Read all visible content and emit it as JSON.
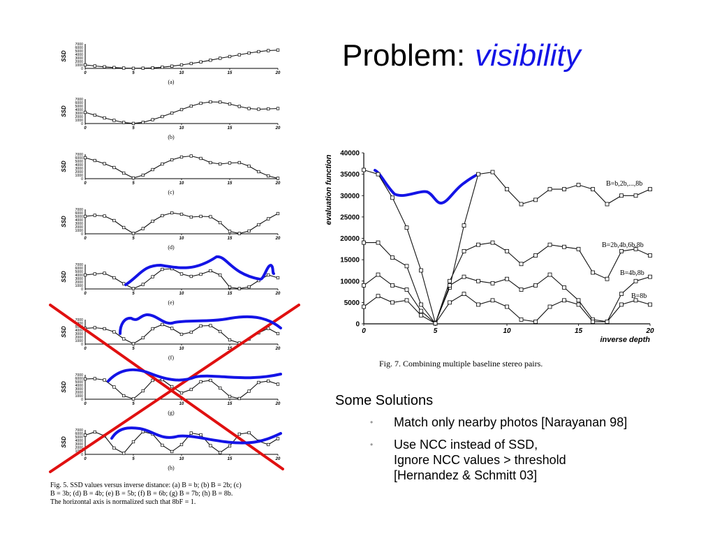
{
  "slide": {
    "title": "Problem:",
    "title_accent": "visibility",
    "solutions_heading": "Some Solutions",
    "solutions": [
      {
        "lines": [
          "Match only nearby photos [Narayanan 98]"
        ]
      },
      {
        "lines": [
          "Use NCC instead of SSD,",
          "Ignore NCC values > threshold",
          "[Hernandez & Schmitt 03]"
        ]
      }
    ],
    "bullet_glyph": "•",
    "colors": {
      "accent_blue": "#1414e6",
      "cross_red": "#e01010",
      "curve": "#111111",
      "bullet_gray": "#999999"
    }
  },
  "chart_data": [
    {
      "id": "fig5",
      "type": "line",
      "caption": "Fig. 5. SSD values versus inverse distance: (a) B = b; (b) B = 2b; (c) B = 3b; (d) B = 4b; (e) B = 5b; (f) B = 6b; (g) B = 7b; (h) B = 8b. The horizontal axis is normalized such that 8bF = 1.",
      "ylabel": "SSD",
      "yticks": [
        "7000",
        "6000",
        "5000",
        "4000",
        "3000",
        "2000",
        "1000",
        "0"
      ],
      "xticks": [
        "0",
        "5",
        "10",
        "15",
        "20"
      ],
      "xlim": [
        0,
        20
      ],
      "ylim": [
        0,
        7000
      ],
      "x": [
        0,
        1,
        2,
        3,
        4,
        5,
        6,
        7,
        8,
        9,
        10,
        11,
        12,
        13,
        14,
        15,
        16,
        17,
        18,
        19,
        20
      ],
      "panels": [
        {
          "label": "(a)",
          "values": [
            1000,
            700,
            450,
            250,
            100,
            30,
            60,
            150,
            350,
            650,
            1000,
            1400,
            1850,
            2350,
            2900,
            3400,
            3900,
            4400,
            4800,
            5100,
            5250
          ]
        },
        {
          "label": "(b)",
          "values": [
            3200,
            2400,
            1600,
            900,
            300,
            30,
            350,
            1100,
            2000,
            3000,
            4000,
            5000,
            5800,
            6200,
            6150,
            5600,
            4900,
            4300,
            4100,
            4200,
            4300
          ]
        },
        {
          "label": "(c)",
          "values": [
            6000,
            5200,
            4300,
            3200,
            1600,
            200,
            1000,
            2600,
            4200,
            5400,
            6200,
            6500,
            5800,
            4600,
            4200,
            4500,
            4600,
            3600,
            2000,
            800,
            100
          ]
        },
        {
          "label": "(d)",
          "values": [
            5000,
            5300,
            5100,
            3800,
            1800,
            100,
            1500,
            3600,
            5200,
            6000,
            5600,
            4800,
            5000,
            4900,
            3200,
            700,
            100,
            800,
            2600,
            4300,
            5800
          ]
        },
        {
          "label": "(e)",
          "values": [
            4000,
            4300,
            4500,
            3200,
            1500,
            100,
            1300,
            3500,
            5600,
            5800,
            4300,
            3600,
            4200,
            5200,
            4000,
            500,
            100,
            600,
            2400,
            4000,
            3200
          ]
        },
        {
          "label": "(f)",
          "values": [
            4500,
            4700,
            4400,
            3500,
            1500,
            100,
            1800,
            4400,
            5600,
            4500,
            2800,
            3400,
            5200,
            5300,
            3600,
            1200,
            300,
            1400,
            3200,
            4500,
            3000
          ]
        },
        {
          "label": "(g)",
          "values": [
            5800,
            5900,
            5500,
            3500,
            1000,
            100,
            2400,
            5400,
            5600,
            3600,
            1800,
            2800,
            5000,
            5400,
            3200,
            800,
            200,
            2300,
            4800,
            5200,
            4300
          ]
        },
        {
          "label": "(h)",
          "values": [
            5500,
            6400,
            5300,
            1800,
            300,
            3600,
            6500,
            5800,
            2600,
            800,
            2800,
            6100,
            5600,
            2500,
            500,
            2400,
            5800,
            6200,
            3800,
            2800,
            4500
          ]
        }
      ]
    },
    {
      "id": "fig7",
      "type": "line",
      "caption": "Fig. 7. Combining multiple baseline stereo pairs.",
      "xlabel": "inverse depth",
      "ylabel": "evaluation function",
      "xlim": [
        0,
        20
      ],
      "ylim": [
        0,
        40000
      ],
      "xticks": [
        "0",
        "5",
        "10",
        "15",
        "20"
      ],
      "yticks": [
        "40000",
        "35000",
        "30000",
        "25000",
        "20000",
        "15000",
        "10000",
        "5000",
        "0"
      ],
      "x": [
        0,
        1,
        2,
        3,
        4,
        5,
        6,
        7,
        8,
        9,
        10,
        11,
        12,
        13,
        14,
        15,
        16,
        17,
        18,
        19,
        20
      ],
      "series": [
        {
          "name": "B=b,2b,...,8b",
          "values": [
            36000,
            35000,
            29500,
            22500,
            12500,
            200,
            8500,
            23000,
            35000,
            35500,
            31500,
            28000,
            29000,
            31500,
            31500,
            32500,
            31500,
            28000,
            30000,
            30000,
            31500
          ]
        },
        {
          "name": "B=2b,4b,6b,8b",
          "values": [
            19000,
            19000,
            15500,
            13500,
            4500,
            100,
            10000,
            17000,
            18500,
            19000,
            17000,
            14000,
            16000,
            18500,
            18000,
            17500,
            12000,
            10500,
            17000,
            17500,
            16000
          ]
        },
        {
          "name": "B=4b,8b",
          "values": [
            9000,
            11500,
            9000,
            8000,
            3000,
            100,
            9000,
            11000,
            10000,
            9500,
            10500,
            8000,
            9000,
            11500,
            8500,
            5500,
            1000,
            500,
            7000,
            10000,
            11000
          ]
        },
        {
          "name": "B=8b",
          "values": [
            4000,
            6500,
            5000,
            5500,
            2000,
            100,
            5000,
            7000,
            4500,
            5500,
            4000,
            1000,
            500,
            4000,
            5500,
            4500,
            500,
            500,
            4500,
            5500,
            4500
          ]
        }
      ]
    }
  ]
}
